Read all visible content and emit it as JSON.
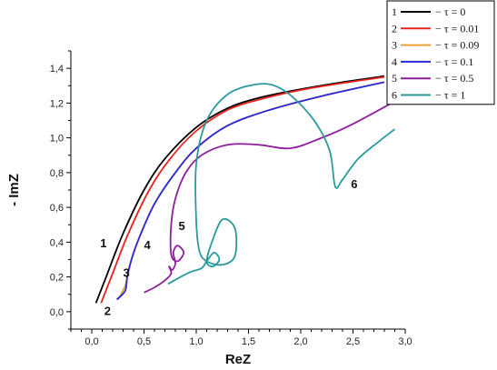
{
  "chart_data": {
    "type": "line",
    "xlabel": "ReZ",
    "ylabel": "- ImZ",
    "xlim": [
      -0.2,
      3.0
    ],
    "ylim": [
      -0.1,
      1.5
    ],
    "x_ticks": [
      "0,0",
      "0,5",
      "1,0",
      "1,5",
      "2,0",
      "2,5",
      "3,0"
    ],
    "y_ticks": [
      "0,0",
      "0,2",
      "0,4",
      "0,6",
      "0,8",
      "1,0",
      "1,2",
      "1,4"
    ],
    "legend_position": "top-right",
    "series": [
      {
        "label_num": "1",
        "legend": "− τ = 0",
        "color": "#000000",
        "label_pos": [
          0.08,
          0.37
        ],
        "points": [
          [
            0.04,
            0.05
          ],
          [
            0.15,
            0.22
          ],
          [
            0.3,
            0.45
          ],
          [
            0.5,
            0.7
          ],
          [
            0.7,
            0.88
          ],
          [
            1.0,
            1.06
          ],
          [
            1.3,
            1.17
          ],
          [
            1.6,
            1.23
          ],
          [
            2.0,
            1.28
          ],
          [
            2.4,
            1.32
          ],
          [
            2.8,
            1.355
          ]
        ]
      },
      {
        "label_num": "2",
        "legend": "− τ = 0.01",
        "color": "#e8231c",
        "label_pos": [
          0.12,
          -0.02
        ],
        "points": [
          [
            0.09,
            0.05
          ],
          [
            0.2,
            0.22
          ],
          [
            0.35,
            0.45
          ],
          [
            0.55,
            0.7
          ],
          [
            0.75,
            0.88
          ],
          [
            1.0,
            1.04
          ],
          [
            1.3,
            1.16
          ],
          [
            1.6,
            1.22
          ],
          [
            2.0,
            1.275
          ],
          [
            2.4,
            1.315
          ],
          [
            2.8,
            1.35
          ]
        ]
      },
      {
        "label_num": "3",
        "legend": "− τ = 0.09",
        "color": "#f0a030",
        "label_pos": [
          0.3,
          0.2
        ],
        "points": [
          [
            0.25,
            0.07
          ],
          [
            0.32,
            0.15
          ],
          [
            0.36,
            0.26
          ],
          [
            0.45,
            0.42
          ],
          [
            0.6,
            0.62
          ],
          [
            0.8,
            0.8
          ],
          [
            1.0,
            0.94
          ],
          [
            1.3,
            1.07
          ],
          [
            1.7,
            1.16
          ],
          [
            2.2,
            1.24
          ],
          [
            2.8,
            1.32
          ]
        ]
      },
      {
        "label_num": "4",
        "legend": "− τ = 0.1",
        "color": "#2929d6",
        "label_pos": [
          0.5,
          0.36
        ],
        "points": [
          [
            0.24,
            0.07
          ],
          [
            0.32,
            0.12
          ],
          [
            0.34,
            0.2
          ],
          [
            0.38,
            0.3
          ],
          [
            0.45,
            0.42
          ],
          [
            0.6,
            0.62
          ],
          [
            0.8,
            0.8
          ],
          [
            1.0,
            0.94
          ],
          [
            1.3,
            1.07
          ],
          [
            1.7,
            1.16
          ],
          [
            2.2,
            1.24
          ],
          [
            2.8,
            1.32
          ]
        ]
      },
      {
        "label_num": "5",
        "legend": "− τ = 0.5",
        "color": "#8e1f9c",
        "label_pos": [
          0.83,
          0.47
        ],
        "points": [
          [
            0.5,
            0.11
          ],
          [
            0.6,
            0.14
          ],
          [
            0.7,
            0.18
          ],
          [
            0.76,
            0.22
          ],
          [
            0.74,
            0.26
          ],
          [
            0.77,
            0.24
          ],
          [
            0.8,
            0.28
          ],
          [
            0.78,
            0.34
          ],
          [
            0.82,
            0.38
          ],
          [
            0.88,
            0.34
          ],
          [
            0.82,
            0.29
          ],
          [
            0.76,
            0.33
          ],
          [
            0.76,
            0.5
          ],
          [
            0.8,
            0.65
          ],
          [
            0.9,
            0.8
          ],
          [
            1.05,
            0.9
          ],
          [
            1.3,
            0.96
          ],
          [
            1.6,
            0.96
          ],
          [
            1.9,
            0.94
          ],
          [
            2.2,
            1.0
          ],
          [
            2.5,
            1.08
          ],
          [
            2.9,
            1.21
          ]
        ]
      },
      {
        "label_num": "6",
        "legend": "− τ = 1",
        "color": "#2a9a9a",
        "label_pos": [
          2.48,
          0.71
        ],
        "points": [
          [
            0.73,
            0.16
          ],
          [
            0.85,
            0.2
          ],
          [
            0.95,
            0.23
          ],
          [
            1.05,
            0.25
          ],
          [
            1.1,
            0.29
          ],
          [
            1.17,
            0.34
          ],
          [
            1.22,
            0.3
          ],
          [
            1.16,
            0.26
          ],
          [
            1.1,
            0.29
          ],
          [
            1.15,
            0.4
          ],
          [
            1.25,
            0.53
          ],
          [
            1.37,
            0.48
          ],
          [
            1.37,
            0.32
          ],
          [
            1.25,
            0.27
          ],
          [
            1.1,
            0.29
          ],
          [
            1.03,
            0.35
          ],
          [
            1.0,
            0.52
          ],
          [
            1.0,
            0.85
          ],
          [
            1.1,
            1.1
          ],
          [
            1.3,
            1.25
          ],
          [
            1.55,
            1.305
          ],
          [
            1.75,
            1.3
          ],
          [
            1.95,
            1.22
          ],
          [
            2.15,
            1.08
          ],
          [
            2.28,
            0.92
          ],
          [
            2.33,
            0.72
          ],
          [
            2.4,
            0.76
          ],
          [
            2.55,
            0.88
          ],
          [
            2.75,
            0.98
          ],
          [
            2.9,
            1.05
          ]
        ]
      }
    ]
  }
}
